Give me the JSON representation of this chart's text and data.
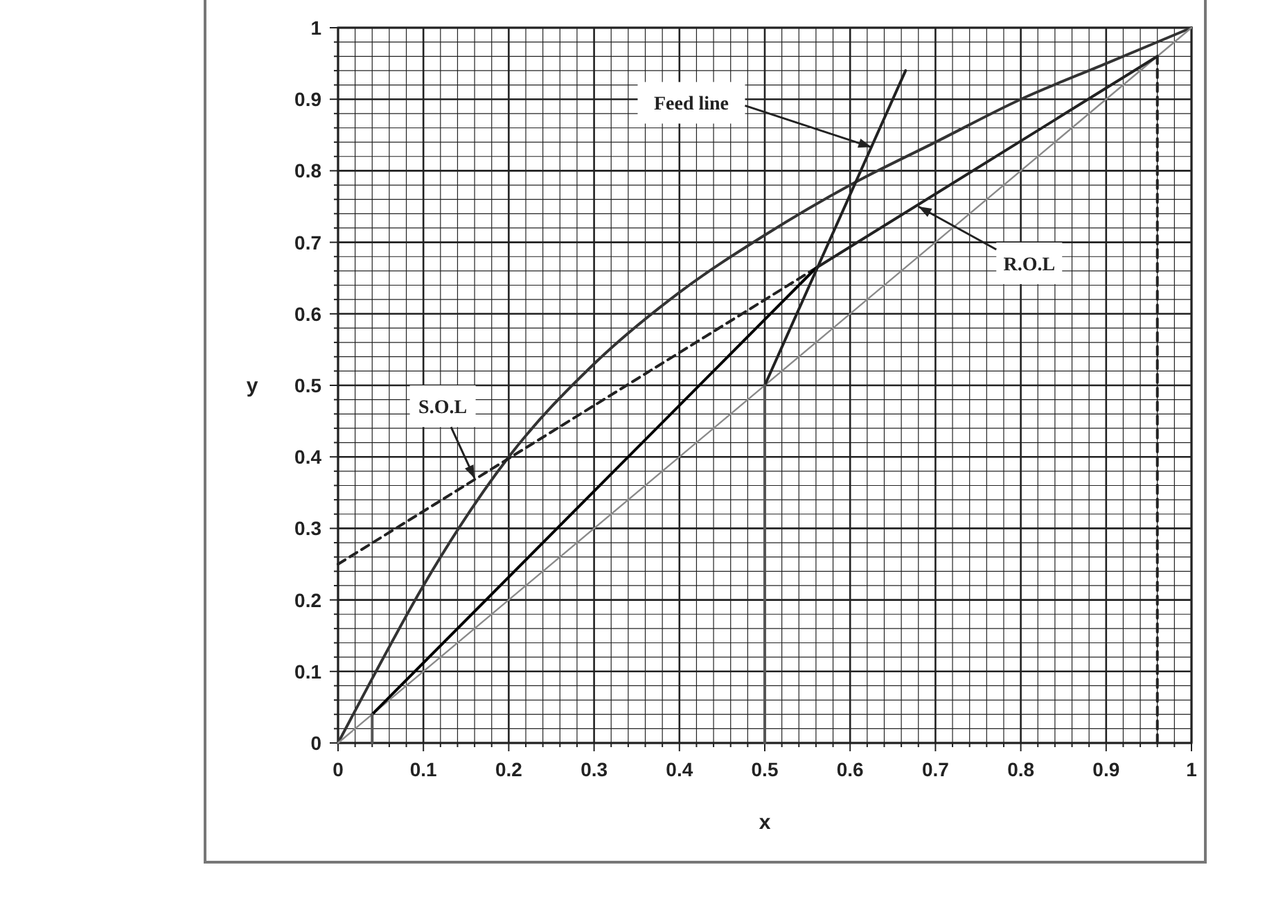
{
  "chart_data": {
    "type": "line",
    "xlabel": "x",
    "ylabel": "y",
    "xlim": [
      0,
      1
    ],
    "ylim": [
      0,
      1
    ],
    "xticks": [
      0,
      {
        "value": 0.02,
        "label": null
      },
      {
        "value": 0.04,
        "label": null
      },
      {
        "value": 0.06,
        "label": null
      },
      {
        "value": 0.08,
        "label": null
      },
      0.1,
      {
        "value": 0.12,
        "label": null
      },
      {
        "value": 0.14,
        "label": null
      },
      {
        "value": 0.16,
        "label": null
      },
      {
        "value": 0.18,
        "label": null
      },
      0.2,
      {
        "value": 0.22,
        "label": null
      },
      {
        "value": 0.24,
        "label": null
      },
      {
        "value": 0.26,
        "label": null
      },
      {
        "value": 0.28,
        "label": null
      },
      0.3,
      {
        "value": 0.32,
        "label": null
      },
      {
        "value": 0.34,
        "label": null
      },
      {
        "value": 0.36,
        "label": null
      },
      {
        "value": 0.38,
        "label": null
      },
      0.4,
      {
        "value": 0.42,
        "label": null
      },
      {
        "value": 0.44,
        "label": null
      },
      {
        "value": 0.46,
        "label": null
      },
      {
        "value": 0.48,
        "label": null
      },
      0.5,
      {
        "value": 0.52,
        "label": null
      },
      {
        "value": 0.54,
        "label": null
      },
      {
        "value": 0.56,
        "label": null
      },
      {
        "value": 0.58,
        "label": null
      },
      0.6,
      {
        "value": 0.62,
        "label": null
      },
      {
        "value": 0.64,
        "label": null
      },
      {
        "value": 0.66,
        "label": null
      },
      {
        "value": 0.68,
        "label": null
      },
      0.7,
      {
        "value": 0.72,
        "label": null
      },
      {
        "value": 0.74,
        "label": null
      },
      {
        "value": 0.76,
        "label": null
      },
      {
        "value": 0.78,
        "label": null
      },
      0.8,
      {
        "value": 0.82,
        "label": null
      },
      {
        "value": 0.84,
        "label": null
      },
      {
        "value": 0.86,
        "label": null
      },
      {
        "value": 0.88,
        "label": null
      },
      0.9,
      {
        "value": 0.92,
        "label": null
      },
      {
        "value": 0.94,
        "label": null
      },
      {
        "value": 0.96,
        "label": null
      },
      {
        "value": 0.98,
        "label": null
      },
      1
    ],
    "yticks": [
      0,
      {
        "value": 0.02,
        "label": null
      },
      {
        "value": 0.04,
        "label": null
      },
      {
        "value": 0.06,
        "label": null
      },
      {
        "value": 0.08,
        "label": null
      },
      0.1,
      {
        "value": 0.12,
        "label": null
      },
      {
        "value": 0.14,
        "label": null
      },
      {
        "value": 0.16,
        "label": null
      },
      {
        "value": 0.18,
        "label": null
      },
      0.2,
      {
        "value": 0.22,
        "label": null
      },
      {
        "value": 0.24,
        "label": null
      },
      {
        "value": 0.26,
        "label": null
      },
      {
        "value": 0.28,
        "label": null
      },
      0.3,
      {
        "value": 0.32,
        "label": null
      },
      {
        "value": 0.34,
        "label": null
      },
      {
        "value": 0.36,
        "label": null
      },
      {
        "value": 0.38,
        "label": null
      },
      0.4,
      {
        "value": 0.42,
        "label": null
      },
      {
        "value": 0.44,
        "label": null
      },
      {
        "value": 0.46,
        "label": null
      },
      {
        "value": 0.48,
        "label": null
      },
      0.5,
      {
        "value": 0.52,
        "label": null
      },
      {
        "value": 0.54,
        "label": null
      },
      {
        "value": 0.56,
        "label": null
      },
      {
        "value": 0.58,
        "label": null
      },
      0.6,
      {
        "value": 0.62,
        "label": null
      },
      {
        "value": 0.64,
        "label": null
      },
      {
        "value": 0.66,
        "label": null
      },
      {
        "value": 0.68,
        "label": null
      },
      0.7,
      {
        "value": 0.72,
        "label": null
      },
      {
        "value": 0.74,
        "label": null
      },
      {
        "value": 0.76,
        "label": null
      },
      {
        "value": 0.78,
        "label": null
      },
      0.8,
      {
        "value": 0.82,
        "label": null
      },
      {
        "value": 0.84,
        "label": null
      },
      {
        "value": 0.86,
        "label": null
      },
      {
        "value": 0.88,
        "label": null
      },
      0.9,
      {
        "value": 0.92,
        "label": null
      },
      {
        "value": 0.94,
        "label": null
      },
      {
        "value": 0.96,
        "label": null
      },
      {
        "value": 0.98,
        "label": null
      },
      1
    ],
    "grid": true,
    "marker": "none",
    "series": [
      {
        "color": "#333333",
        "x": [
          0,
          0.04,
          0.1,
          0.2,
          0.3,
          0.4,
          0.5,
          0.6,
          0.7,
          0.8,
          0.9,
          1
        ],
        "values": [
          0,
          0.09,
          0.22,
          0.4,
          0.53,
          0.63,
          0.71,
          0.78,
          0.84,
          0.9,
          0.95,
          1
        ]
      },
      {
        "color": "#8a8a8a",
        "x": [
          0,
          1
        ],
        "values": [
          0,
          1
        ]
      },
      {
        "color": "#222222",
        "x": [
          0.56,
          0.96
        ],
        "values": [
          0.664,
          0.96
        ]
      },
      {
        "color": "#222222",
        "line_style": "dashed",
        "x": [
          0,
          0.56
        ],
        "values": [
          0.25,
          0.664
        ]
      },
      {
        "color": "#000000",
        "x": [
          0.04,
          0.56
        ],
        "values": [
          0.04,
          0.664
        ]
      },
      {
        "color": "#222222",
        "x": [
          0.5,
          0.665
        ],
        "values": [
          0.5,
          0.94
        ]
      },
      {
        "color": "#555555",
        "x": [
          0.5,
          0.5
        ],
        "values": [
          0,
          0.5
        ]
      },
      {
        "color": "#555555",
        "x": [
          0.04,
          0.04
        ],
        "values": [
          0,
          0.04
        ]
      },
      {
        "color": "#222222",
        "line_style": "dashed",
        "x": [
          0.96,
          0.96
        ],
        "values": [
          0,
          0.96
        ]
      }
    ],
    "annotations": [
      {
        "text": "Feed line",
        "x": 0.625,
        "y": 0.833
      },
      {
        "text": "R.O.L",
        "x": 0.68,
        "y": 0.75
      },
      {
        "text": "S.O.L",
        "x": 0.16,
        "y": 0.37
      }
    ]
  }
}
